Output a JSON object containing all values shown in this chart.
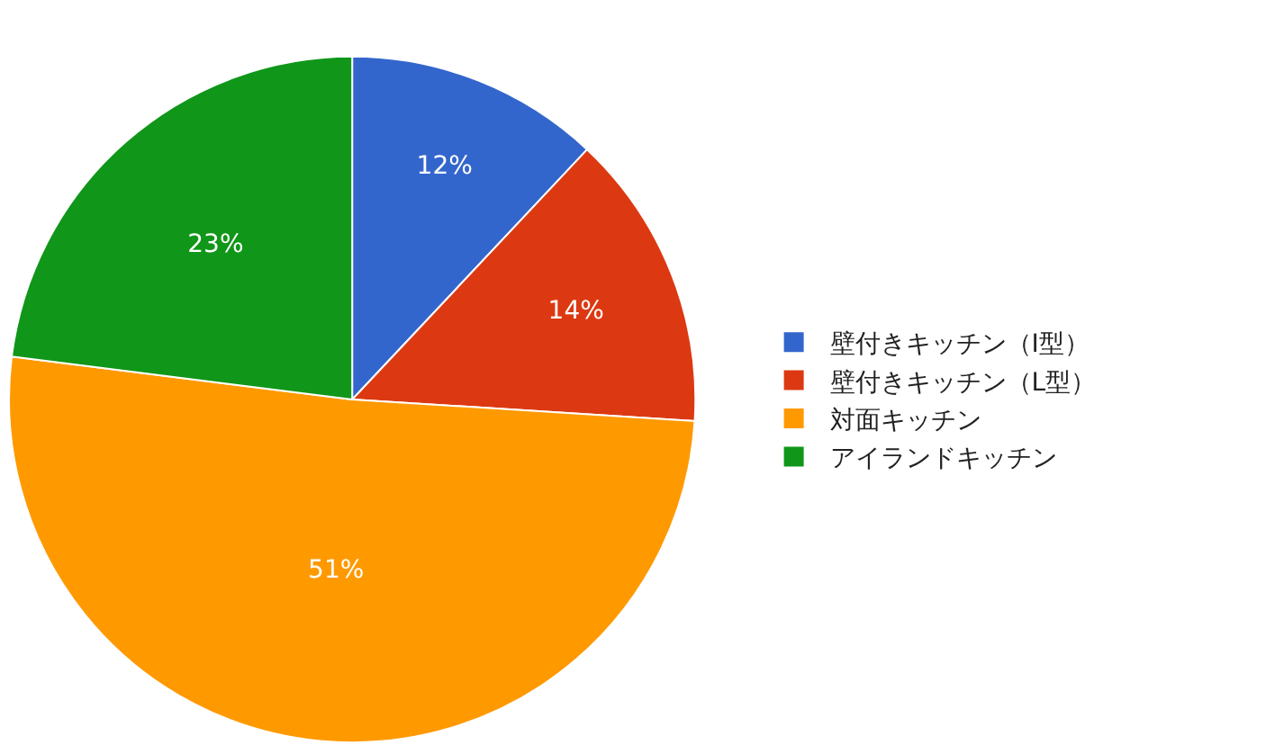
{
  "chart_data": {
    "type": "pie",
    "categories": [
      "壁付きキッチン（I型）",
      "壁付きキッチン（L型）",
      "対面キッチン",
      "アイランドキッチン"
    ],
    "values": [
      12,
      14,
      51,
      23
    ],
    "colors": [
      "#3366cc",
      "#dc3912",
      "#ff9900",
      "#109618"
    ],
    "value_labels": [
      "12%",
      "14%",
      "51%",
      "23%"
    ],
    "legend": "right"
  }
}
